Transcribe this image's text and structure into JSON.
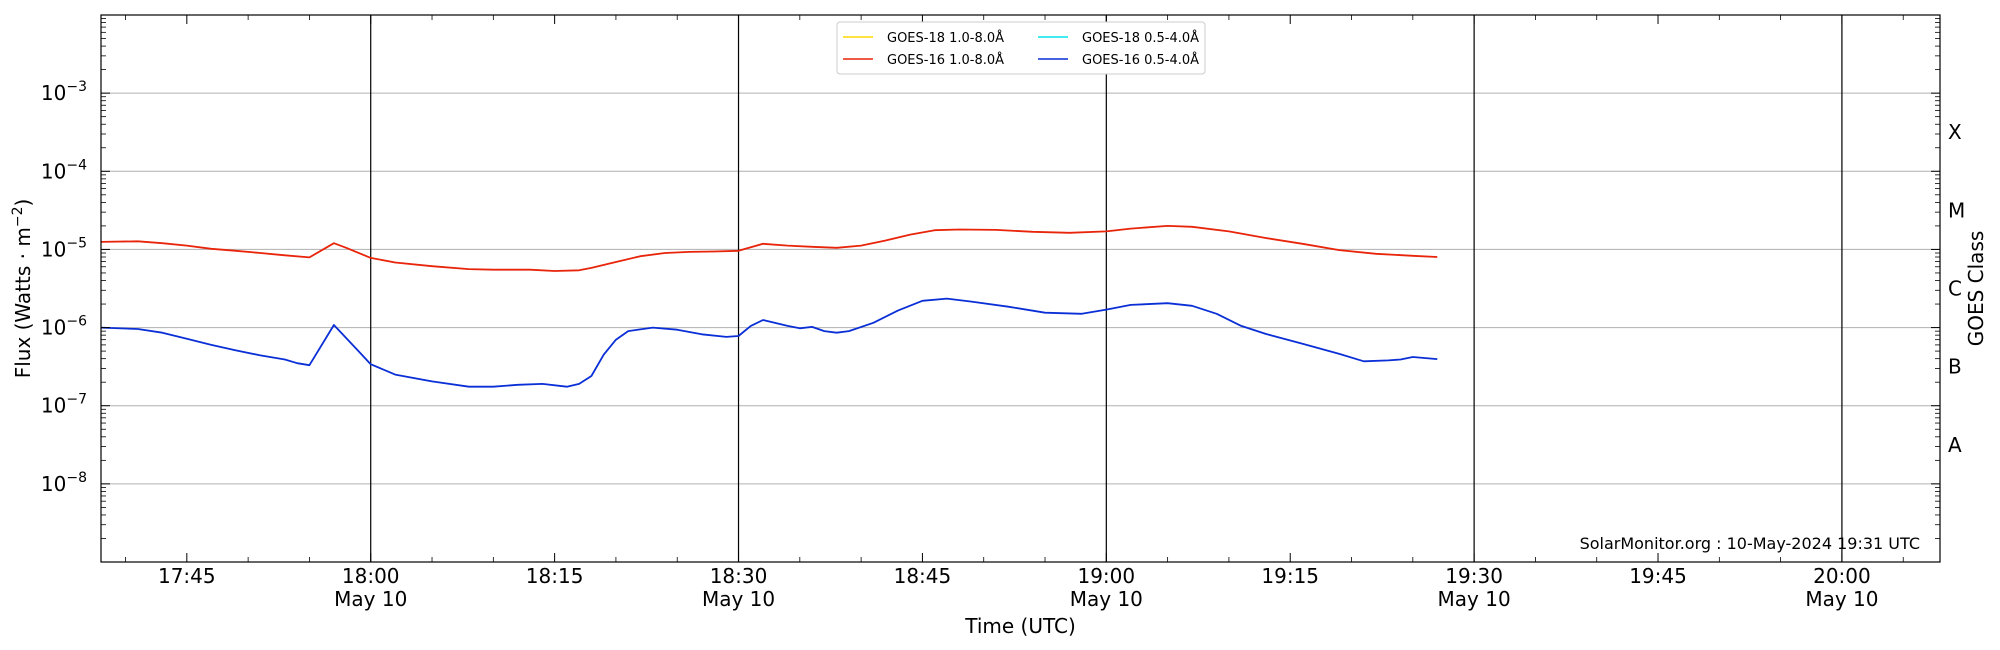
{
  "chart_data": {
    "type": "line",
    "title": "",
    "xlabel": "Time (UTC)",
    "ylabel_main": "Flux (Watts",
    "ylabel_unit": "m",
    "ylabel_exp": "−2",
    "y2label": "GOES Class",
    "yscale": "log",
    "ylim": [
      1e-09,
      0.01
    ],
    "xlim": [
      "17:38",
      "20:08"
    ],
    "grid": "horizontal at decades",
    "legend_position": "top-center",
    "credit": "SolarMonitor.org : 10-May-2024 19:31 UTC",
    "x_ticks": [
      {
        "time": "17:45",
        "label": "17:45",
        "sublabel": ""
      },
      {
        "time": "18:00",
        "label": "18:00",
        "sublabel": "May 10"
      },
      {
        "time": "18:15",
        "label": "18:15",
        "sublabel": ""
      },
      {
        "time": "18:30",
        "label": "18:30",
        "sublabel": "May 10"
      },
      {
        "time": "18:45",
        "label": "18:45",
        "sublabel": ""
      },
      {
        "time": "19:00",
        "label": "19:00",
        "sublabel": "May 10"
      },
      {
        "time": "19:15",
        "label": "19:15",
        "sublabel": ""
      },
      {
        "time": "19:30",
        "label": "19:30",
        "sublabel": "May 10"
      },
      {
        "time": "19:45",
        "label": "19:45",
        "sublabel": ""
      },
      {
        "time": "20:00",
        "label": "20:00",
        "sublabel": "May 10"
      }
    ],
    "day_lines": [
      "18:00",
      "18:30",
      "19:00",
      "19:30",
      "20:00"
    ],
    "y_ticks": [
      {
        "value": 1e-08,
        "base": "10",
        "exp": "−8"
      },
      {
        "value": 1e-07,
        "base": "10",
        "exp": "−7"
      },
      {
        "value": 1e-06,
        "base": "10",
        "exp": "−6"
      },
      {
        "value": 1e-05,
        "base": "10",
        "exp": "−5"
      },
      {
        "value": 0.0001,
        "base": "10",
        "exp": "−4"
      },
      {
        "value": 0.001,
        "base": "10",
        "exp": "−3"
      }
    ],
    "goes_classes": [
      {
        "label": "A",
        "value": 3.16e-08
      },
      {
        "label": "B",
        "value": 3.16e-07
      },
      {
        "label": "C",
        "value": 3.16e-06
      },
      {
        "label": "M",
        "value": 3.16e-05
      },
      {
        "label": "X",
        "value": 0.000316
      }
    ],
    "series": [
      {
        "name": "GOES-18 1.0-8.0Å",
        "color": "#ffd700",
        "data": []
      },
      {
        "name": "GOES-18 0.5-4.0Å",
        "color": "#00e5ee",
        "data": []
      },
      {
        "name": "GOES-16 1.0-8.0Å",
        "color": "#e8240a",
        "data": [
          [
            "17:38",
            1.25e-05
          ],
          [
            "17:41",
            1.27e-05
          ],
          [
            "17:43",
            1.2e-05
          ],
          [
            "17:45",
            1.12e-05
          ],
          [
            "17:47",
            1.02e-05
          ],
          [
            "17:49",
            9.6e-06
          ],
          [
            "17:51",
            9e-06
          ],
          [
            "17:53",
            8.4e-06
          ],
          [
            "17:55",
            7.9e-06
          ],
          [
            "17:57",
            1.2e-05
          ],
          [
            "17:58",
            1.05e-05
          ],
          [
            "18:00",
            7.8e-06
          ],
          [
            "18:02",
            6.8e-06
          ],
          [
            "18:05",
            6.1e-06
          ],
          [
            "18:08",
            5.6e-06
          ],
          [
            "18:10",
            5.5e-06
          ],
          [
            "18:13",
            5.5e-06
          ],
          [
            "18:15",
            5.3e-06
          ],
          [
            "18:17",
            5.4e-06
          ],
          [
            "18:18",
            5.8e-06
          ],
          [
            "18:20",
            6.9e-06
          ],
          [
            "18:22",
            8.2e-06
          ],
          [
            "18:24",
            9e-06
          ],
          [
            "18:26",
            9.3e-06
          ],
          [
            "18:28",
            9.4e-06
          ],
          [
            "18:30",
            9.6e-06
          ],
          [
            "18:32",
            1.18e-05
          ],
          [
            "18:34",
            1.12e-05
          ],
          [
            "18:36",
            1.08e-05
          ],
          [
            "18:38",
            1.05e-05
          ],
          [
            "18:40",
            1.12e-05
          ],
          [
            "18:42",
            1.3e-05
          ],
          [
            "18:44",
            1.55e-05
          ],
          [
            "18:46",
            1.76e-05
          ],
          [
            "18:48",
            1.8e-05
          ],
          [
            "18:51",
            1.78e-05
          ],
          [
            "18:54",
            1.68e-05
          ],
          [
            "18:57",
            1.63e-05
          ],
          [
            "19:00",
            1.7e-05
          ],
          [
            "19:02",
            1.85e-05
          ],
          [
            "19:05",
            2e-05
          ],
          [
            "19:07",
            1.95e-05
          ],
          [
            "19:10",
            1.7e-05
          ],
          [
            "19:13",
            1.4e-05
          ],
          [
            "19:16",
            1.18e-05
          ],
          [
            "19:19",
            9.8e-06
          ],
          [
            "19:22",
            8.8e-06
          ],
          [
            "19:25",
            8.3e-06
          ],
          [
            "19:27",
            8e-06
          ]
        ]
      },
      {
        "name": "GOES-16 0.5-4.0Å",
        "color": "#0a2fd6",
        "data": [
          [
            "17:38",
            1e-06
          ],
          [
            "17:41",
            9.6e-07
          ],
          [
            "17:43",
            8.6e-07
          ],
          [
            "17:45",
            7.2e-07
          ],
          [
            "17:47",
            6e-07
          ],
          [
            "17:49",
            5.1e-07
          ],
          [
            "17:51",
            4.4e-07
          ],
          [
            "17:53",
            3.9e-07
          ],
          [
            "17:54",
            3.5e-07
          ],
          [
            "17:55",
            3.3e-07
          ],
          [
            "17:57",
            1.08e-06
          ],
          [
            "17:59",
            5e-07
          ],
          [
            "18:00",
            3.4e-07
          ],
          [
            "18:02",
            2.5e-07
          ],
          [
            "18:05",
            2.05e-07
          ],
          [
            "18:08",
            1.75e-07
          ],
          [
            "18:10",
            1.75e-07
          ],
          [
            "18:12",
            1.85e-07
          ],
          [
            "18:14",
            1.9e-07
          ],
          [
            "18:16",
            1.75e-07
          ],
          [
            "18:17",
            1.9e-07
          ],
          [
            "18:18",
            2.4e-07
          ],
          [
            "18:19",
            4.5e-07
          ],
          [
            "18:20",
            7e-07
          ],
          [
            "18:21",
            9e-07
          ],
          [
            "18:23",
            1e-06
          ],
          [
            "18:25",
            9.4e-07
          ],
          [
            "18:27",
            8.2e-07
          ],
          [
            "18:29",
            7.6e-07
          ],
          [
            "18:30",
            7.8e-07
          ],
          [
            "18:31",
            1.05e-06
          ],
          [
            "18:32",
            1.25e-06
          ],
          [
            "18:34",
            1.05e-06
          ],
          [
            "18:35",
            9.8e-07
          ],
          [
            "18:36",
            1.02e-06
          ],
          [
            "18:37",
            9e-07
          ],
          [
            "18:38",
            8.6e-07
          ],
          [
            "18:39",
            9e-07
          ],
          [
            "18:41",
            1.15e-06
          ],
          [
            "18:43",
            1.65e-06
          ],
          [
            "18:45",
            2.2e-06
          ],
          [
            "18:47",
            2.35e-06
          ],
          [
            "18:49",
            2.15e-06
          ],
          [
            "18:52",
            1.85e-06
          ],
          [
            "18:55",
            1.55e-06
          ],
          [
            "18:58",
            1.5e-06
          ],
          [
            "19:00",
            1.7e-06
          ],
          [
            "19:02",
            1.95e-06
          ],
          [
            "19:05",
            2.05e-06
          ],
          [
            "19:07",
            1.9e-06
          ],
          [
            "19:09",
            1.5e-06
          ],
          [
            "19:11",
            1.05e-06
          ],
          [
            "19:13",
            8.3e-07
          ],
          [
            "19:16",
            6.2e-07
          ],
          [
            "19:19",
            4.6e-07
          ],
          [
            "19:21",
            3.7e-07
          ],
          [
            "19:23",
            3.8e-07
          ],
          [
            "19:24",
            3.9e-07
          ],
          [
            "19:25",
            4.2e-07
          ],
          [
            "19:27",
            3.95e-07
          ]
        ]
      }
    ]
  }
}
